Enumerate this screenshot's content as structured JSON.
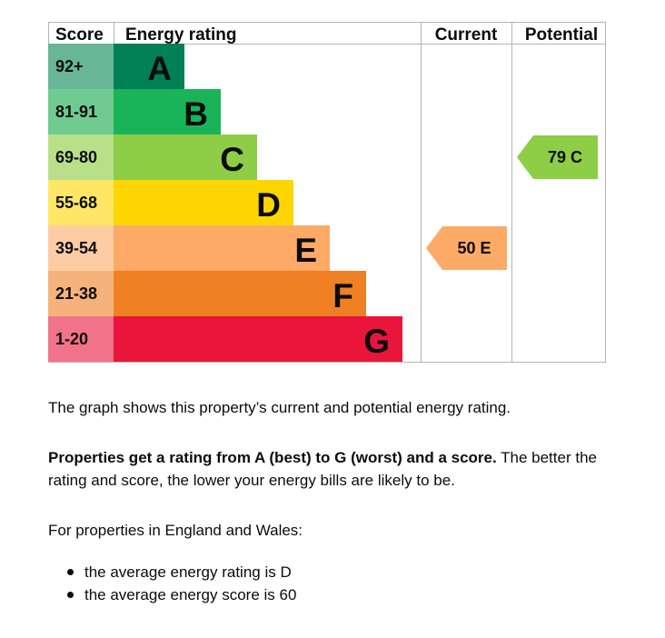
{
  "chart_data": {
    "type": "bar",
    "columns": {
      "score": "Score",
      "rating": "Energy rating",
      "current": "Current",
      "potential": "Potential"
    },
    "bands": [
      {
        "letter": "A",
        "range": "92+",
        "color": "#008054",
        "score_color": "#69b697"
      },
      {
        "letter": "B",
        "range": "81-91",
        "color": "#19b459",
        "score_color": "#6fcb8f"
      },
      {
        "letter": "C",
        "range": "69-80",
        "color": "#8dce46",
        "score_color": "#b8e088"
      },
      {
        "letter": "D",
        "range": "55-68",
        "color": "#ffd500",
        "score_color": "#ffe666"
      },
      {
        "letter": "E",
        "range": "39-54",
        "color": "#fcaa65",
        "score_color": "#fdcca3"
      },
      {
        "letter": "F",
        "range": "21-38",
        "color": "#ef8023",
        "score_color": "#f5b37b"
      },
      {
        "letter": "G",
        "range": "1-20",
        "color": "#e9153b",
        "score_color": "#f27389"
      }
    ],
    "current": {
      "score": 50,
      "letter": "E",
      "label": "50  E",
      "color": "#fcaa65"
    },
    "potential": {
      "score": 79,
      "letter": "C",
      "label": "79  C",
      "color": "#8dce46"
    }
  },
  "intro_text": "The graph shows this property’s current and potential energy rating.",
  "rating_explanation": {
    "bold": "Properties get a rating from A (best) to G (worst) and a score.",
    "rest": " The better the rating and score, the lower your energy bills are likely to be."
  },
  "region_note": "For properties in England and Wales:",
  "averages": [
    "the average energy rating is D",
    "the average energy score is 60"
  ]
}
